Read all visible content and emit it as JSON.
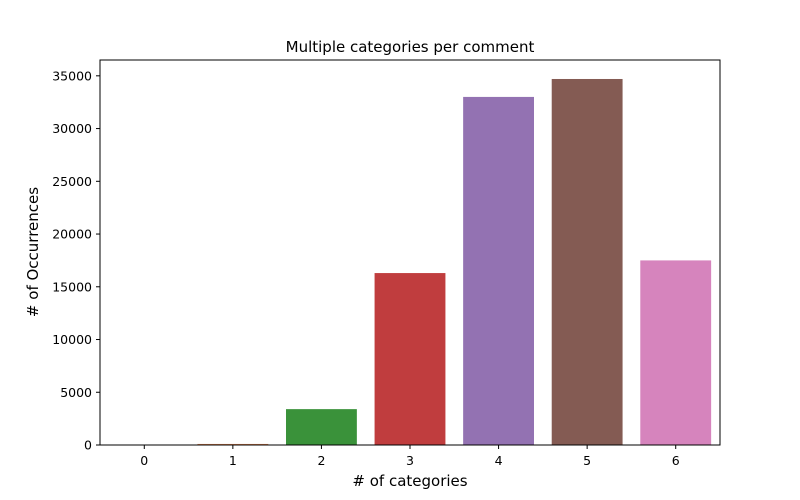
{
  "chart_data": {
    "type": "bar",
    "title": "Multiple categories per comment",
    "xlabel": "# of categories",
    "ylabel": "# of Occurrences",
    "categories": [
      "0",
      "1",
      "2",
      "3",
      "4",
      "5",
      "6"
    ],
    "values": [
      0,
      100,
      3400,
      16300,
      33000,
      34700,
      17500
    ],
    "colors": [
      "#1f77b4",
      "#dd8452",
      "#3a923a",
      "#c03d3e",
      "#9372b2",
      "#845b53",
      "#d684bd"
    ],
    "ylim": [
      0,
      36500
    ],
    "yticks": [
      0,
      5000,
      10000,
      15000,
      20000,
      25000,
      30000,
      35000
    ],
    "grid": false,
    "legend": "none"
  }
}
